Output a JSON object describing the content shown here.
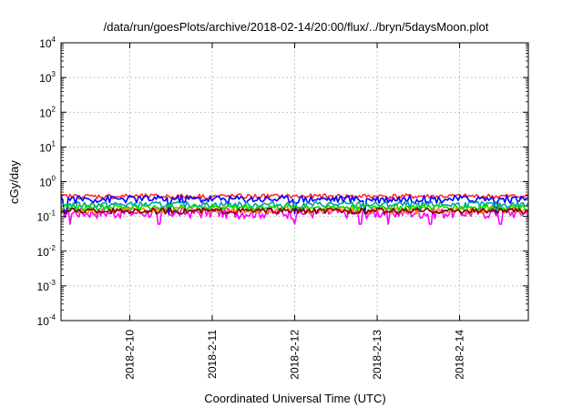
{
  "chart_data": {
    "type": "line",
    "title": "/data/run/goesPlots/archive/2018-02-14/20:00/flux/../bryn/5daysMoon.plot",
    "xlabel": "Coordinated Universal Time (UTC)",
    "ylabel": "cGy/day",
    "yscale": "log",
    "ylim": [
      0.0001,
      10000
    ],
    "xlim": [
      "2018-02-09T04:00",
      "2018-02-14T20:00"
    ],
    "y_ticks": [
      {
        "base": "10",
        "exp": "-4",
        "value": 0.0001
      },
      {
        "base": "10",
        "exp": "-3",
        "value": 0.001
      },
      {
        "base": "10",
        "exp": "-2",
        "value": 0.01
      },
      {
        "base": "10",
        "exp": "-1",
        "value": 0.1
      },
      {
        "base": "10",
        "exp": "0",
        "value": 1
      },
      {
        "base": "10",
        "exp": "1",
        "value": 10
      },
      {
        "base": "10",
        "exp": "2",
        "value": 100
      },
      {
        "base": "10",
        "exp": "3",
        "value": 1000
      },
      {
        "base": "10",
        "exp": "4",
        "value": 10000
      }
    ],
    "x_ticks": [
      {
        "label": "2018-2-10",
        "value": "2018-02-10T00:00"
      },
      {
        "label": "2018-2-11",
        "value": "2018-02-11T00:00"
      },
      {
        "label": "2018-2-12",
        "value": "2018-02-12T00:00"
      },
      {
        "label": "2018-2-13",
        "value": "2018-02-13T00:00"
      },
      {
        "label": "2018-2-14",
        "value": "2018-02-14T00:00"
      }
    ],
    "grid": true,
    "legend": "none",
    "series": [
      {
        "color": "#ff00ff",
        "base": 0.13,
        "noise": 0.05,
        "dips": [
          0.02,
          0.21,
          0.5,
          0.64,
          0.7,
          0.79,
          0.94
        ],
        "dip_value": 0.06
      },
      {
        "color": "#ff8c00",
        "base": 0.155,
        "noise": 0.04,
        "dips": [],
        "dip_value": 0.1
      },
      {
        "color": "#ff3030",
        "base": 0.38,
        "noise": 0.07,
        "dips": [],
        "dip_value": 0.3
      },
      {
        "color": "#0000ff",
        "base": 0.32,
        "noise": 0.09,
        "dips": [
          0.01,
          0.23,
          0.5,
          0.65,
          0.93
        ],
        "dip_value": 0.12
      },
      {
        "color": "#00a0a0",
        "base": 0.22,
        "noise": 0.05,
        "dips": [
          0.03,
          0.51,
          0.77
        ],
        "dip_value": 0.14
      },
      {
        "color": "#00e000",
        "base": 0.185,
        "noise": 0.04,
        "dips": [],
        "dip_value": 0.1
      },
      {
        "color": "#800000",
        "base": 0.145,
        "noise": 0.03,
        "dips": [],
        "dip_value": 0.1
      }
    ]
  }
}
